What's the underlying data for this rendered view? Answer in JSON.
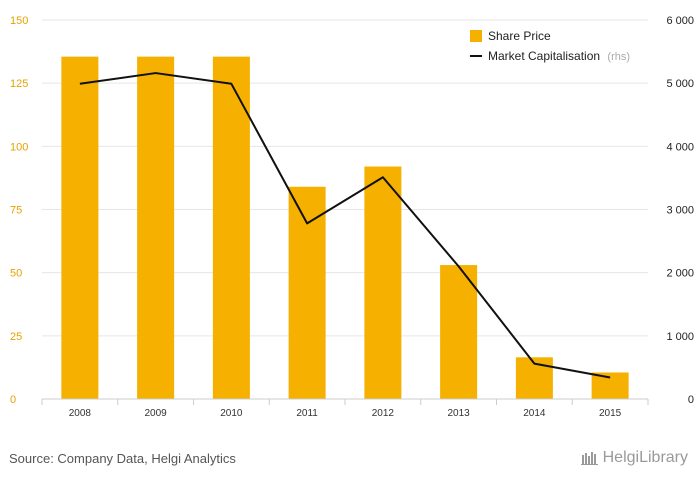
{
  "chart_data": {
    "type": "bar",
    "categories": [
      "2008",
      "2009",
      "2010",
      "2011",
      "2012",
      "2013",
      "2014",
      "2015"
    ],
    "series": [
      {
        "name": "Share Price",
        "type": "bar",
        "axis": "left",
        "color": "#f5b000",
        "values": [
          135.5,
          135.5,
          135.5,
          84,
          92,
          53,
          16.5,
          10.5
        ]
      },
      {
        "name": "Market Capitalisation",
        "name_suffix": "(rhs)",
        "type": "line",
        "axis": "right",
        "color": "#111111",
        "values": [
          4990,
          5160,
          4990,
          2780,
          3510,
          2100,
          560,
          340
        ]
      }
    ],
    "y_left": {
      "ylim": [
        0,
        150
      ],
      "ticks": [
        "0",
        "25",
        "50",
        "75",
        "100",
        "125",
        "150"
      ]
    },
    "y_right": {
      "ylim": [
        0,
        6000
      ],
      "ticks": [
        "0",
        "1 000",
        "2 000",
        "3 000",
        "4 000",
        "5 000",
        "6 000"
      ]
    },
    "grid": "horizontal",
    "legend_position": "top-right"
  },
  "footer": {
    "source": "Source: Company Data, Helgi Analytics",
    "logo_text": "HelgiLibrary"
  }
}
